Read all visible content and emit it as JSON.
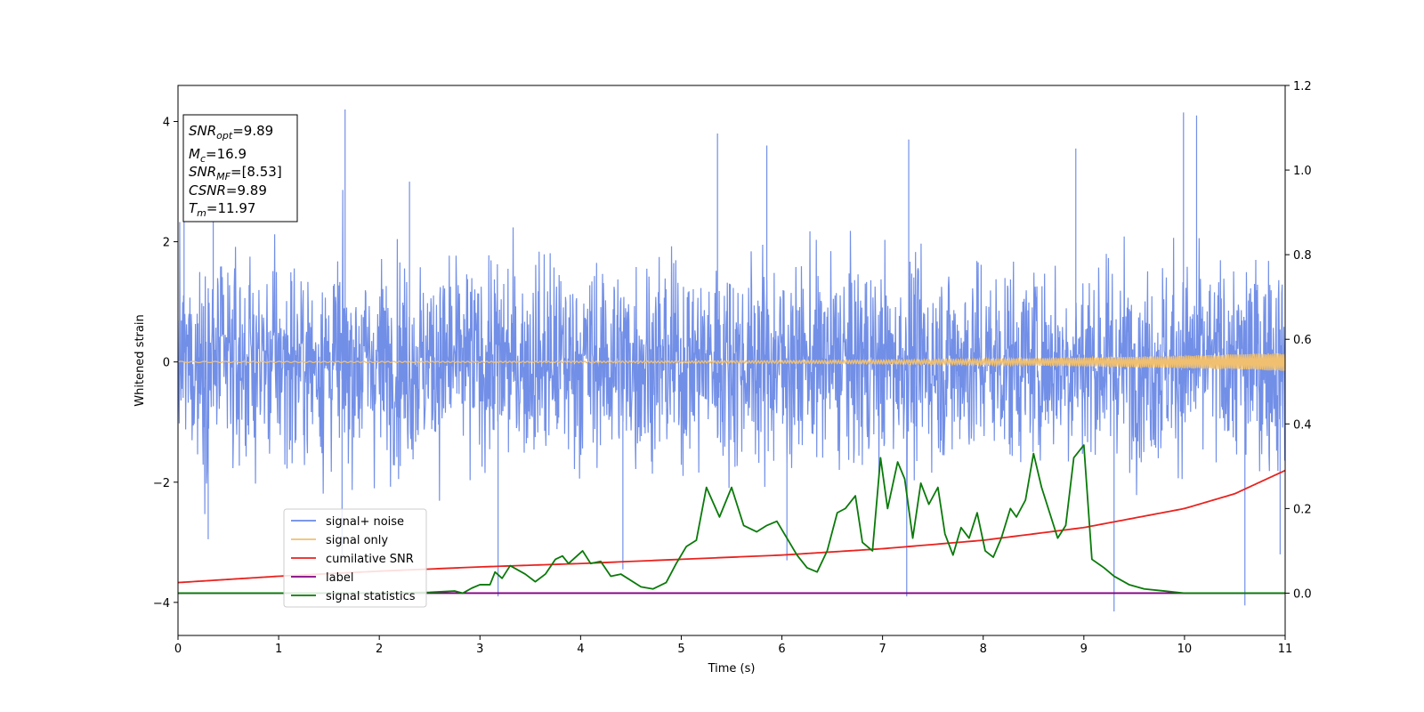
{
  "chart_data": {
    "type": "line",
    "title": "",
    "xlabel": "Time (s)",
    "ylabel": "Whitened strain",
    "xlim": [
      0,
      11
    ],
    "ylim": [
      -4.55,
      4.6
    ],
    "y2lim": [
      -0.1,
      1.2
    ],
    "x_ticks": [
      "0",
      "1",
      "2",
      "3",
      "4",
      "5",
      "6",
      "7",
      "8",
      "9",
      "10",
      "11"
    ],
    "y_ticks": [
      "−4",
      "−2",
      "0",
      "2",
      "4"
    ],
    "y2_ticks": [
      "0.0",
      "0.2",
      "0.4",
      "0.6",
      "0.8",
      "1.0",
      "1.2"
    ],
    "grid": false,
    "legend_position": "lower-left",
    "series": [
      {
        "name": "signal+ noise",
        "axis": "left",
        "color": "#6a89e6",
        "description": "noisy whitened strain, roughly within ±3, occasional spikes near ±4",
        "band_min": -3.0,
        "band_max": 3.0,
        "peaks": [
          {
            "x": 0.06,
            "y": 2.75
          },
          {
            "x": 0.35,
            "y": 2.9
          },
          {
            "x": 1.66,
            "y": 4.2
          },
          {
            "x": 2.3,
            "y": 3.0
          },
          {
            "x": 5.36,
            "y": 3.8
          },
          {
            "x": 5.85,
            "y": 3.6
          },
          {
            "x": 7.26,
            "y": 3.7
          },
          {
            "x": 8.92,
            "y": 3.55
          },
          {
            "x": 9.99,
            "y": 4.15
          },
          {
            "x": 10.12,
            "y": 4.1
          }
        ],
        "troughs": [
          {
            "x": 0.3,
            "y": -2.95
          },
          {
            "x": 1.63,
            "y": -3.25
          },
          {
            "x": 3.18,
            "y": -3.9
          },
          {
            "x": 4.42,
            "y": -3.45
          },
          {
            "x": 6.05,
            "y": -3.3
          },
          {
            "x": 7.24,
            "y": -3.9
          },
          {
            "x": 9.3,
            "y": -4.15
          },
          {
            "x": 10.6,
            "y": -4.05
          },
          {
            "x": 10.95,
            "y": -3.2
          }
        ]
      },
      {
        "name": "signal only",
        "axis": "left",
        "color": "#f0c070",
        "description": "chirp with amplitude growing toward t=11",
        "amplitude_start": 0.01,
        "amplitude_end": 0.15
      },
      {
        "name": "cumilative SNR",
        "axis": "right",
        "color": "#e8231f",
        "x": [
          0,
          1,
          2,
          3,
          4,
          5,
          6,
          7,
          8,
          9,
          10,
          10.5,
          11
        ],
        "y": [
          0.025,
          0.04,
          0.052,
          0.062,
          0.07,
          0.08,
          0.09,
          0.105,
          0.125,
          0.155,
          0.2,
          0.235,
          0.29
        ]
      },
      {
        "name": "label",
        "axis": "right",
        "color": "#800080",
        "x": [
          0,
          11
        ],
        "y": [
          0.0,
          0.0
        ]
      },
      {
        "name": "signal statistics",
        "axis": "right",
        "color": "#0a7a0a",
        "x": [
          0,
          0.5,
          1.0,
          1.5,
          2.0,
          2.5,
          2.75,
          2.83,
          2.92,
          3.0,
          3.1,
          3.15,
          3.22,
          3.3,
          3.45,
          3.55,
          3.65,
          3.75,
          3.82,
          3.88,
          4.02,
          4.1,
          4.2,
          4.3,
          4.4,
          4.6,
          4.72,
          4.85,
          4.95,
          5.05,
          5.15,
          5.25,
          5.38,
          5.5,
          5.62,
          5.75,
          5.85,
          5.95,
          6.05,
          6.15,
          6.25,
          6.35,
          6.45,
          6.55,
          6.63,
          6.73,
          6.8,
          6.9,
          6.98,
          7.05,
          7.15,
          7.22,
          7.3,
          7.38,
          7.46,
          7.55,
          7.62,
          7.7,
          7.78,
          7.86,
          7.94,
          8.02,
          8.1,
          8.18,
          8.27,
          8.33,
          8.42,
          8.5,
          8.58,
          8.66,
          8.74,
          8.82,
          8.9,
          9.0,
          9.08,
          9.2,
          9.3,
          9.45,
          9.6,
          9.8,
          10.0,
          11.0
        ],
        "y": [
          0.0,
          0.0,
          0.0,
          0.0,
          0.0,
          0.002,
          0.005,
          0.0,
          0.012,
          0.02,
          0.02,
          0.05,
          0.035,
          0.065,
          0.045,
          0.027,
          0.045,
          0.08,
          0.088,
          0.07,
          0.1,
          0.07,
          0.075,
          0.04,
          0.045,
          0.015,
          0.01,
          0.025,
          0.07,
          0.11,
          0.125,
          0.25,
          0.18,
          0.25,
          0.16,
          0.145,
          0.16,
          0.17,
          0.13,
          0.09,
          0.06,
          0.05,
          0.1,
          0.19,
          0.2,
          0.23,
          0.12,
          0.1,
          0.32,
          0.2,
          0.31,
          0.27,
          0.13,
          0.26,
          0.21,
          0.25,
          0.14,
          0.09,
          0.155,
          0.13,
          0.19,
          0.1,
          0.085,
          0.13,
          0.2,
          0.18,
          0.22,
          0.33,
          0.25,
          0.19,
          0.13,
          0.16,
          0.32,
          0.35,
          0.08,
          0.06,
          0.04,
          0.02,
          0.01,
          0.005,
          0.0,
          0.0
        ]
      }
    ],
    "annotations": [
      {
        "label": "SNR",
        "sub": "opt",
        "value": "=9.89"
      },
      {
        "label": "M",
        "sub": "c",
        "value": "=16.9"
      },
      {
        "label": "SNR",
        "sub": "MF",
        "value": "=[8.53]"
      },
      {
        "label": "CSNR",
        "sub": "",
        "value": "=9.89"
      },
      {
        "label": "T",
        "sub": "m",
        "value": "=11.97"
      }
    ]
  }
}
